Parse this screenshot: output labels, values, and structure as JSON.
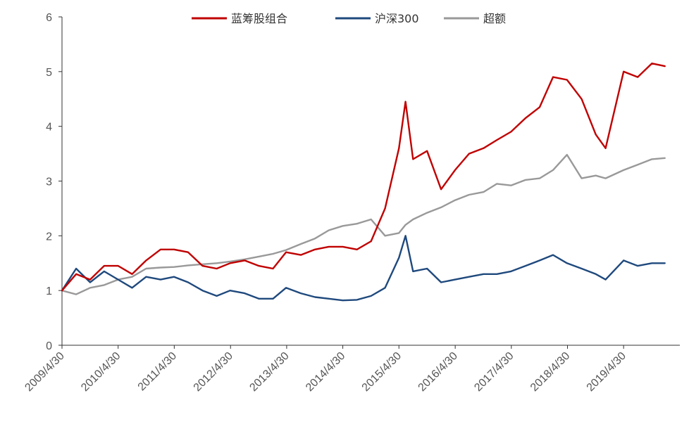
{
  "chart_data": {
    "type": "line",
    "title": "",
    "xlabel": "",
    "ylabel": "",
    "ylim": [
      0,
      6
    ],
    "y_ticks": [
      "0",
      "1",
      "2",
      "3",
      "4",
      "5",
      "6"
    ],
    "x_ticks": [
      "2009/4/30",
      "2010/4/30",
      "2011/4/30",
      "2012/4/30",
      "2013/4/30",
      "2014/4/30",
      "2015/4/30",
      "2016/4/30",
      "2017/4/30",
      "2018/4/30",
      "2019/4/30"
    ],
    "grid": false,
    "legend": {
      "placement": "top-center"
    },
    "x": [
      "2009/4/30",
      "2009/7/31",
      "2009/10/30",
      "2010/1/29",
      "2010/4/30",
      "2010/7/30",
      "2010/10/29",
      "2011/1/31",
      "2011/4/29",
      "2011/7/29",
      "2011/10/31",
      "2012/1/31",
      "2012/4/27",
      "2012/7/31",
      "2012/10/31",
      "2013/1/31",
      "2013/4/26",
      "2013/7/31",
      "2013/10/31",
      "2014/1/29",
      "2014/4/30",
      "2014/7/31",
      "2014/10/31",
      "2015/1/30",
      "2015/4/30",
      "2015/6/12",
      "2015/7/31",
      "2015/10/30",
      "2016/1/29",
      "2016/4/29",
      "2016/7/29",
      "2016/10/31",
      "2017/1/26",
      "2017/4/28",
      "2017/7/31",
      "2017/10/31",
      "2018/1/26",
      "2018/4/27",
      "2018/7/31",
      "2018/10/31",
      "2019/1/3",
      "2019/4/30",
      "2019/7/31",
      "2019/10/31",
      "2020/1/23"
    ],
    "series": [
      {
        "name": "蓝筹股组合",
        "color": "#c00000",
        "values": [
          1.0,
          1.3,
          1.2,
          1.45,
          1.45,
          1.3,
          1.55,
          1.75,
          1.75,
          1.7,
          1.45,
          1.4,
          1.5,
          1.55,
          1.45,
          1.4,
          1.7,
          1.65,
          1.75,
          1.8,
          1.8,
          1.75,
          1.9,
          2.5,
          3.6,
          4.45,
          3.4,
          3.55,
          2.85,
          3.2,
          3.5,
          3.6,
          3.75,
          3.9,
          4.15,
          4.35,
          4.9,
          4.85,
          4.5,
          3.85,
          3.6,
          5.0,
          4.9,
          5.15,
          5.1
        ]
      },
      {
        "name": "沪深300",
        "color": "#1f497d",
        "values": [
          1.0,
          1.4,
          1.15,
          1.35,
          1.2,
          1.05,
          1.25,
          1.2,
          1.25,
          1.15,
          1.0,
          0.9,
          1.0,
          0.95,
          0.85,
          0.85,
          1.05,
          0.95,
          0.88,
          0.85,
          0.82,
          0.83,
          0.9,
          1.05,
          1.6,
          2.0,
          1.35,
          1.4,
          1.15,
          1.2,
          1.25,
          1.3,
          1.3,
          1.35,
          1.45,
          1.55,
          1.65,
          1.5,
          1.4,
          1.3,
          1.2,
          1.55,
          1.45,
          1.5,
          1.5
        ]
      },
      {
        "name": "超额",
        "color": "#999999",
        "values": [
          1.0,
          0.93,
          1.05,
          1.1,
          1.2,
          1.25,
          1.4,
          1.42,
          1.43,
          1.46,
          1.48,
          1.5,
          1.53,
          1.57,
          1.62,
          1.67,
          1.74,
          1.85,
          1.95,
          2.1,
          2.18,
          2.22,
          2.3,
          2.0,
          2.05,
          2.2,
          2.3,
          2.42,
          2.52,
          2.65,
          2.75,
          2.8,
          2.95,
          2.92,
          3.02,
          3.05,
          3.2,
          3.48,
          3.05,
          3.1,
          3.05,
          3.2,
          3.3,
          3.4,
          3.42
        ]
      }
    ]
  }
}
